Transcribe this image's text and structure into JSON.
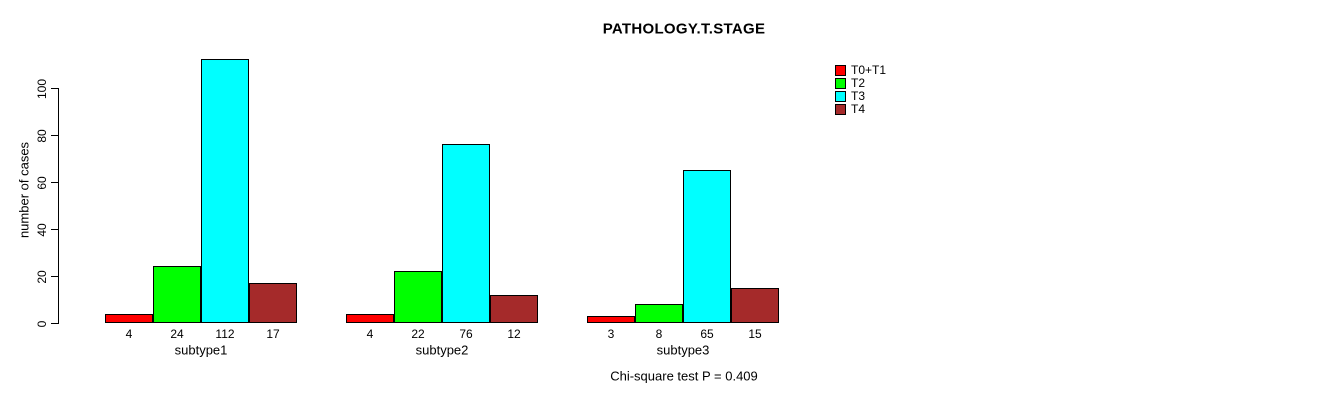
{
  "title": "PATHOLOGY.T.STAGE",
  "footer": "Chi-square test P = 0.409",
  "chart_data": {
    "type": "bar",
    "title": "PATHOLOGY.T.STAGE",
    "xlabel": "",
    "ylabel": "number of cases",
    "categories": [
      "subtype1",
      "subtype2",
      "subtype3"
    ],
    "series": [
      {
        "name": "T0+T1",
        "color": "#ff0000",
        "values": [
          4,
          4,
          3
        ]
      },
      {
        "name": "T2",
        "color": "#00ff00",
        "values": [
          24,
          22,
          8
        ]
      },
      {
        "name": "T3",
        "color": "#00ffff",
        "values": [
          112,
          76,
          65
        ]
      },
      {
        "name": "T4",
        "color": "#a52a2a",
        "values": [
          17,
          12,
          15
        ]
      }
    ],
    "bar_value_labels": [
      [
        "4",
        "24",
        "112",
        "17"
      ],
      [
        "4",
        "22",
        "76",
        "12"
      ],
      [
        "3",
        "8",
        "65",
        "15"
      ]
    ],
    "yticks": [
      0,
      20,
      40,
      60,
      80,
      100
    ],
    "ylim": [
      0,
      112
    ],
    "grid": false,
    "legend_position": "top-right",
    "legend_entries": [
      "T0+T1",
      "T2",
      "T3",
      "T4"
    ],
    "annotation": "Chi-square test P = 0.409",
    "axis_color": "#000000",
    "bar_border_color": "#000000",
    "background_color": "#ffffff"
  }
}
